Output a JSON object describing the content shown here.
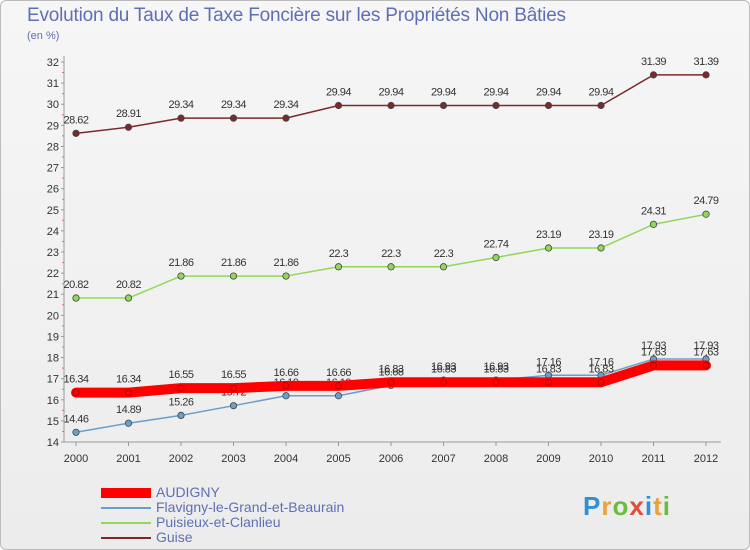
{
  "chart_data": {
    "type": "line",
    "title": "Evolution du Taux de Taxe Foncière sur les Propriétés Non Bâties",
    "ylabel": "(en %)",
    "xlabel": "",
    "categories": [
      "2000",
      "2001",
      "2002",
      "2003",
      "2004",
      "2005",
      "2006",
      "2007",
      "2008",
      "2009",
      "2010",
      "2011",
      "2012"
    ],
    "ylim": [
      14,
      32
    ],
    "yticks": [
      "14",
      "15",
      "16",
      "17",
      "18",
      "19",
      "20",
      "21",
      "22",
      "23",
      "24",
      "25",
      "26",
      "27",
      "28",
      "29",
      "30",
      "31",
      "32"
    ],
    "series": [
      {
        "name": "AUDIGNY",
        "color": "#ff0000",
        "values": [
          16.34,
          16.34,
          16.55,
          16.55,
          16.66,
          16.66,
          16.83,
          16.83,
          16.83,
          16.83,
          16.83,
          17.63,
          17.63
        ],
        "labels": [
          "16.34",
          "16.34",
          "16.55",
          "16.55",
          "16.66",
          "16.66",
          "16.83",
          "16.83",
          "16.83",
          "16.83",
          "16.83",
          "17.63",
          "17.63"
        ]
      },
      {
        "name": "Flavigny-le-Grand-et-Beaurain",
        "color": "#6d9dc9",
        "values": [
          14.46,
          14.89,
          15.26,
          15.72,
          16.19,
          16.19,
          16.68,
          16.93,
          16.93,
          17.16,
          17.16,
          17.93,
          17.93
        ],
        "labels": [
          "14.46",
          "14.89",
          "15.26",
          "15.72",
          "16.19",
          "16.19",
          "16.68",
          "16.93",
          "16.93",
          "17.16",
          "17.16",
          "17.93",
          "17.93"
        ]
      },
      {
        "name": "Puisieux-et-Clanlieu",
        "color": "#93d75a",
        "values": [
          20.82,
          20.82,
          21.86,
          21.86,
          21.86,
          22.3,
          22.3,
          22.3,
          22.74,
          23.19,
          23.19,
          24.31,
          24.79
        ],
        "labels": [
          "20.82",
          "20.82",
          "21.86",
          "21.86",
          "21.86",
          "22.3",
          "22.3",
          "22.3",
          "22.74",
          "23.19",
          "23.19",
          "24.31",
          "24.79"
        ]
      },
      {
        "name": "Guise",
        "color": "#7a2a2a",
        "values": [
          28.62,
          28.91,
          29.34,
          29.34,
          29.34,
          29.94,
          29.94,
          29.94,
          29.94,
          29.94,
          29.94,
          31.39,
          31.39
        ],
        "labels": [
          "28.62",
          "28.91",
          "29.34",
          "29.34",
          "29.34",
          "29.94",
          "29.94",
          "29.94",
          "29.94",
          "29.94",
          "29.94",
          "31.39",
          "31.39"
        ]
      }
    ],
    "legend_position": "bottom-left",
    "grid": false
  },
  "legend": {
    "items": [
      {
        "label": "AUDIGNY",
        "color": "#ff0000"
      },
      {
        "label": "Flavigny-le-Grand-et-Beaurain",
        "color": "#6d9dc9"
      },
      {
        "label": "Puisieux-et-Clanlieu",
        "color": "#93d75a"
      },
      {
        "label": "Guise",
        "color": "#7a2a2a"
      }
    ]
  },
  "logo": {
    "letters": [
      "P",
      "r",
      "o",
      "x",
      "i",
      "t",
      "i"
    ],
    "colors": [
      "#2f8fd8",
      "#e8a23a",
      "#6cbc3c",
      "#e24a3c",
      "#2f8fd8",
      "#e8a23a",
      "#6cbc3c"
    ]
  }
}
